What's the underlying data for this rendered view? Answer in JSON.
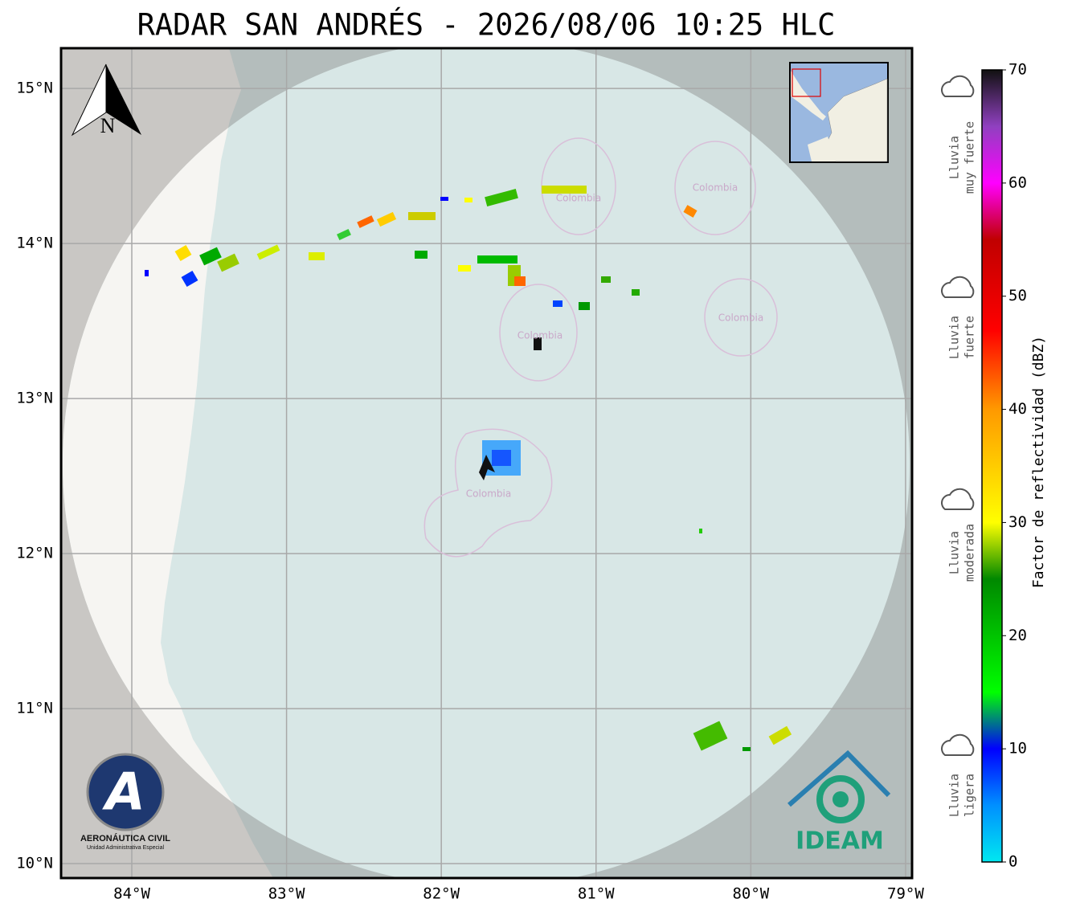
{
  "title": "RADAR SAN ANDRÉS - 2026/08/06 10:25 HLC",
  "map": {
    "lon_range": [
      -84.457,
      -78.958
    ],
    "lat_range": [
      9.907,
      15.26
    ],
    "grid": true,
    "lon_ticks": [
      {
        "value": -84,
        "label": "84°W"
      },
      {
        "value": -83,
        "label": "83°W"
      },
      {
        "value": -82,
        "label": "82°W"
      },
      {
        "value": -81,
        "label": "81°W"
      },
      {
        "value": -80,
        "label": "80°W"
      },
      {
        "value": -79,
        "label": "79°W"
      }
    ],
    "lat_ticks": [
      {
        "value": 10,
        "label": "10°N"
      },
      {
        "value": 11,
        "label": "11°N"
      },
      {
        "value": 12,
        "label": "12°N"
      },
      {
        "value": 13,
        "label": "13°N"
      },
      {
        "value": 14,
        "label": "14°N"
      },
      {
        "value": 15,
        "label": "15°N"
      }
    ],
    "north_label": "N",
    "region_labels": [
      "Colombia",
      "Colombia",
      "Colombia",
      "Colombia",
      "Colombia"
    ]
  },
  "colorbar": {
    "label": "Factor de reflectividad (dBZ)",
    "lim": [
      0,
      70
    ],
    "ticks": [
      0,
      10,
      20,
      30,
      40,
      50,
      60,
      70
    ],
    "stops": [
      [
        0,
        "#00e8f0"
      ],
      [
        5,
        "#0090ff"
      ],
      [
        10,
        "#0000ff"
      ],
      [
        15,
        "#00ff00"
      ],
      [
        25,
        "#008800"
      ],
      [
        30,
        "#ffff00"
      ],
      [
        40,
        "#ff9900"
      ],
      [
        47,
        "#ff0000"
      ],
      [
        55,
        "#c00000"
      ],
      [
        60,
        "#ff00ff"
      ],
      [
        65,
        "#9040c0"
      ],
      [
        70,
        "#111111"
      ]
    ]
  },
  "rain_classes": [
    [
      "Lluvia",
      "muy fuerte"
    ],
    [
      "Lluvia",
      "fuerte"
    ],
    [
      "Lluvia",
      "moderada"
    ],
    [
      "Lluvia",
      "ligera"
    ]
  ],
  "logos": {
    "aeronautica_letter": "A",
    "aeronautica": "AERONÁUTICA CIVIL",
    "aeronautica_sub": "Unidad Administrativa Especial",
    "ideam": "IDEAM"
  }
}
